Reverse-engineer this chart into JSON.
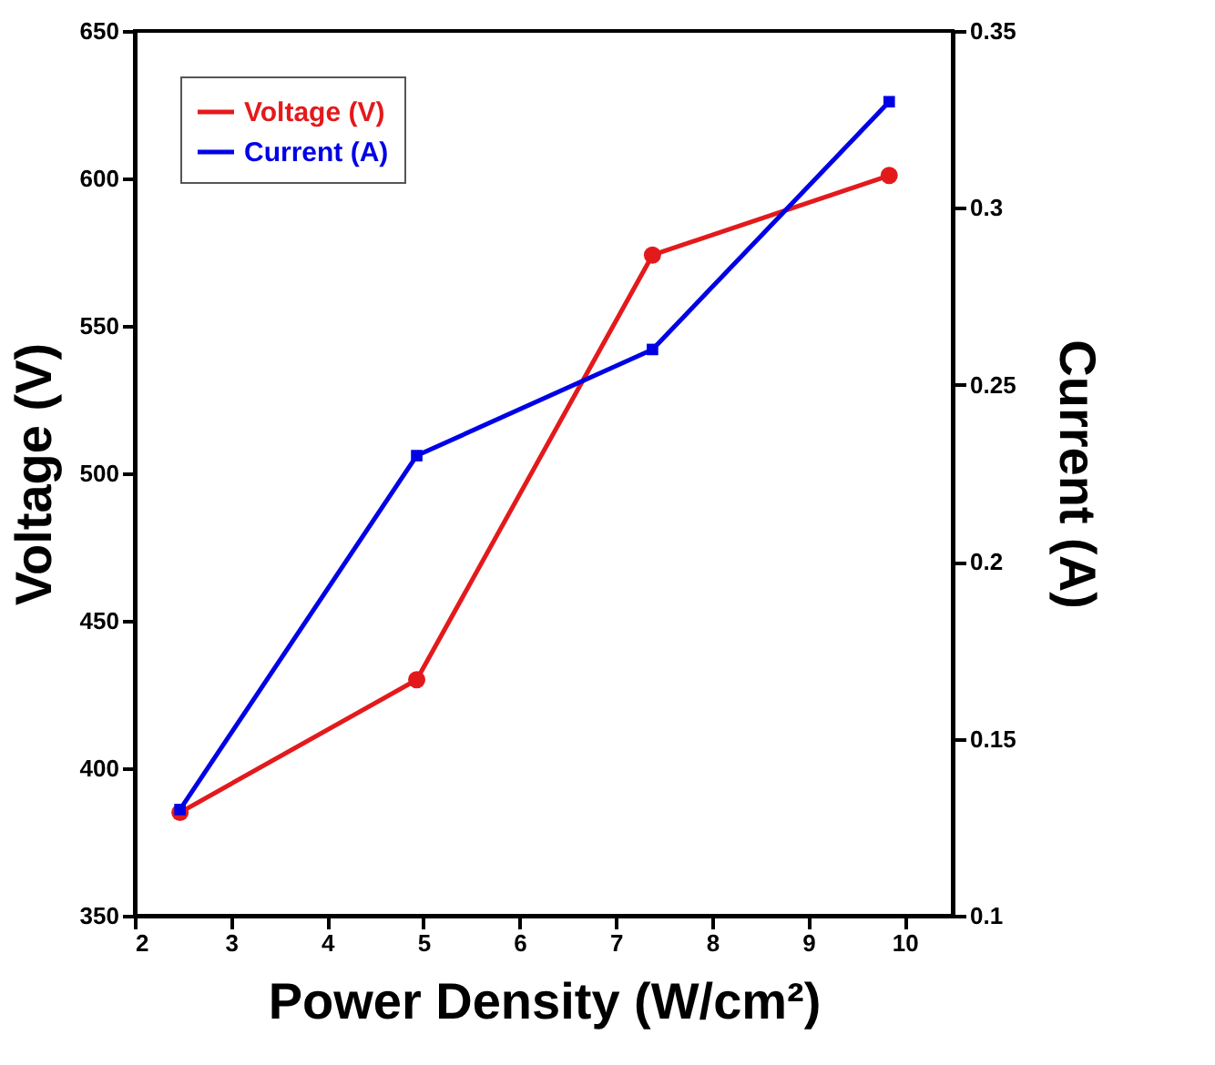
{
  "chart_data": {
    "type": "line",
    "xlabel": "Power Density  (W/cm²)",
    "ylabel": "Voltage (V)",
    "y2label": "Current (A)",
    "x": [
      2.47,
      4.93,
      7.38,
      9.84
    ],
    "series": [
      {
        "name": "Voltage (V)",
        "color": "#e31a1c",
        "marker": "circle",
        "values": [
          385,
          430,
          574,
          601
        ]
      },
      {
        "name": "Current (A)",
        "color": "#0000e6",
        "marker": "square",
        "axis": "y2",
        "values": [
          0.13,
          0.23,
          0.26,
          0.33
        ]
      }
    ],
    "xlim": [
      2,
      10.5
    ],
    "xticks": [
      2,
      3,
      4,
      5,
      6,
      7,
      8,
      9,
      10
    ],
    "ylim": [
      350,
      650
    ],
    "yticks": [
      350,
      400,
      450,
      500,
      550,
      600,
      650
    ],
    "y2lim": [
      0.1,
      0.35
    ],
    "y2ticks": [
      0.1,
      0.15,
      0.2,
      0.25,
      0.3,
      0.35
    ],
    "legend": "top left",
    "grid": false,
    "line_style": "solid"
  }
}
